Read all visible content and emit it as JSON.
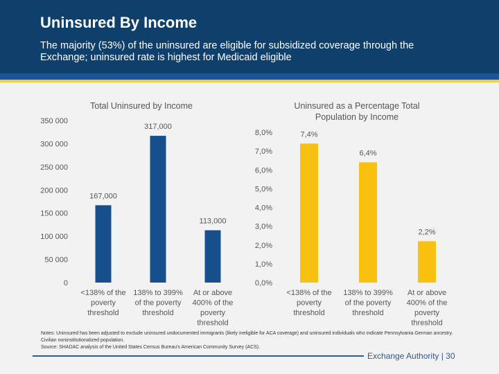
{
  "header": {
    "title": "Uninsured By Income",
    "subtitle": "The majority (53%) of the uninsured are eligible for subsidized coverage through the Exchange; uninsured rate is highest for Medicaid eligible"
  },
  "chart_data": [
    {
      "type": "bar",
      "title": "Total Uninsured by Income",
      "categories": [
        "<138% of the poverty threshold",
        "138% to 399% of the poverty threshold",
        "At or above 400% of the poverty threshold"
      ],
      "values": [
        167000,
        317000,
        113000
      ],
      "data_labels": [
        "167,000",
        "317,000",
        "113,000"
      ],
      "ylim": [
        0,
        350000
      ],
      "yticks": [
        0,
        50000,
        100000,
        150000,
        200000,
        250000,
        300000,
        350000
      ],
      "ytick_labels": [
        "0",
        "50 000",
        "100 000",
        "150 000",
        "200 000",
        "250 000",
        "300 000",
        "350 000"
      ],
      "color": "#174f8c",
      "grid": false
    },
    {
      "type": "bar",
      "title": "Uninsured as a Percentage Total Population by Income",
      "categories": [
        "<138% of the poverty threshold",
        "138% to 399% of the poverty threshold",
        "At or above 400% of the poverty threshold"
      ],
      "values": [
        7.4,
        6.4,
        2.2
      ],
      "data_labels": [
        "7,4%",
        "6,4%",
        "2,2%"
      ],
      "ylim": [
        0,
        8
      ],
      "yticks": [
        0,
        1,
        2,
        3,
        4,
        5,
        6,
        7,
        8
      ],
      "ytick_labels": [
        "0,0%",
        "1,0%",
        "2,0%",
        "3,0%",
        "4,0%",
        "5,0%",
        "6,0%",
        "7,0%",
        "8,0%"
      ],
      "color": "#f9c10f",
      "grid": false
    }
  ],
  "notes": [
    "Notes: Uninsured has been adjusted to exclude uninsured undocumented immigrants (likely ineligible for ACA coverage) and uninsured individuals who indicate Pennsylvania German ancestry. Civilian noninstitutionalized population.",
    "Source: SHADAC analysis of the United States Census Bureau's American Community Survey (ACS)."
  ],
  "footer": {
    "text": "Exchange Authority  |  30"
  }
}
